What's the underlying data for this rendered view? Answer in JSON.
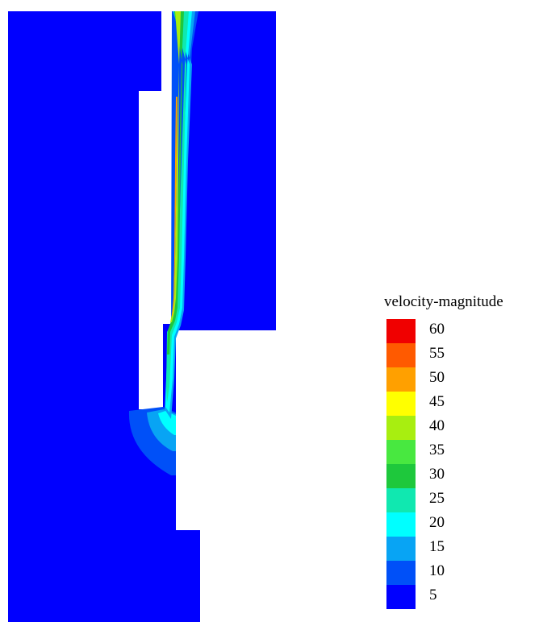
{
  "legend": {
    "title": "velocity-magnitude",
    "labels": [
      "60",
      "55",
      "50",
      "45",
      "40",
      "35",
      "30",
      "25",
      "20",
      "15",
      "10",
      "5"
    ],
    "colors": [
      "#f00000",
      "#ff5a00",
      "#ffa000",
      "#ffff00",
      "#a8ee10",
      "#48e840",
      "#1ec83c",
      "#10e8b0",
      "#00ffff",
      "#08a4f4",
      "#0050f8",
      "#0000ff"
    ]
  },
  "colors": {
    "background_flow": "#0000ff",
    "level_10": "#0050f8",
    "level_15": "#08a4f4",
    "level_20": "#00ffff",
    "level_25": "#10e8b0",
    "level_30": "#1ec83c",
    "level_40": "#a8ee10",
    "level_50": "#ffa000"
  }
}
